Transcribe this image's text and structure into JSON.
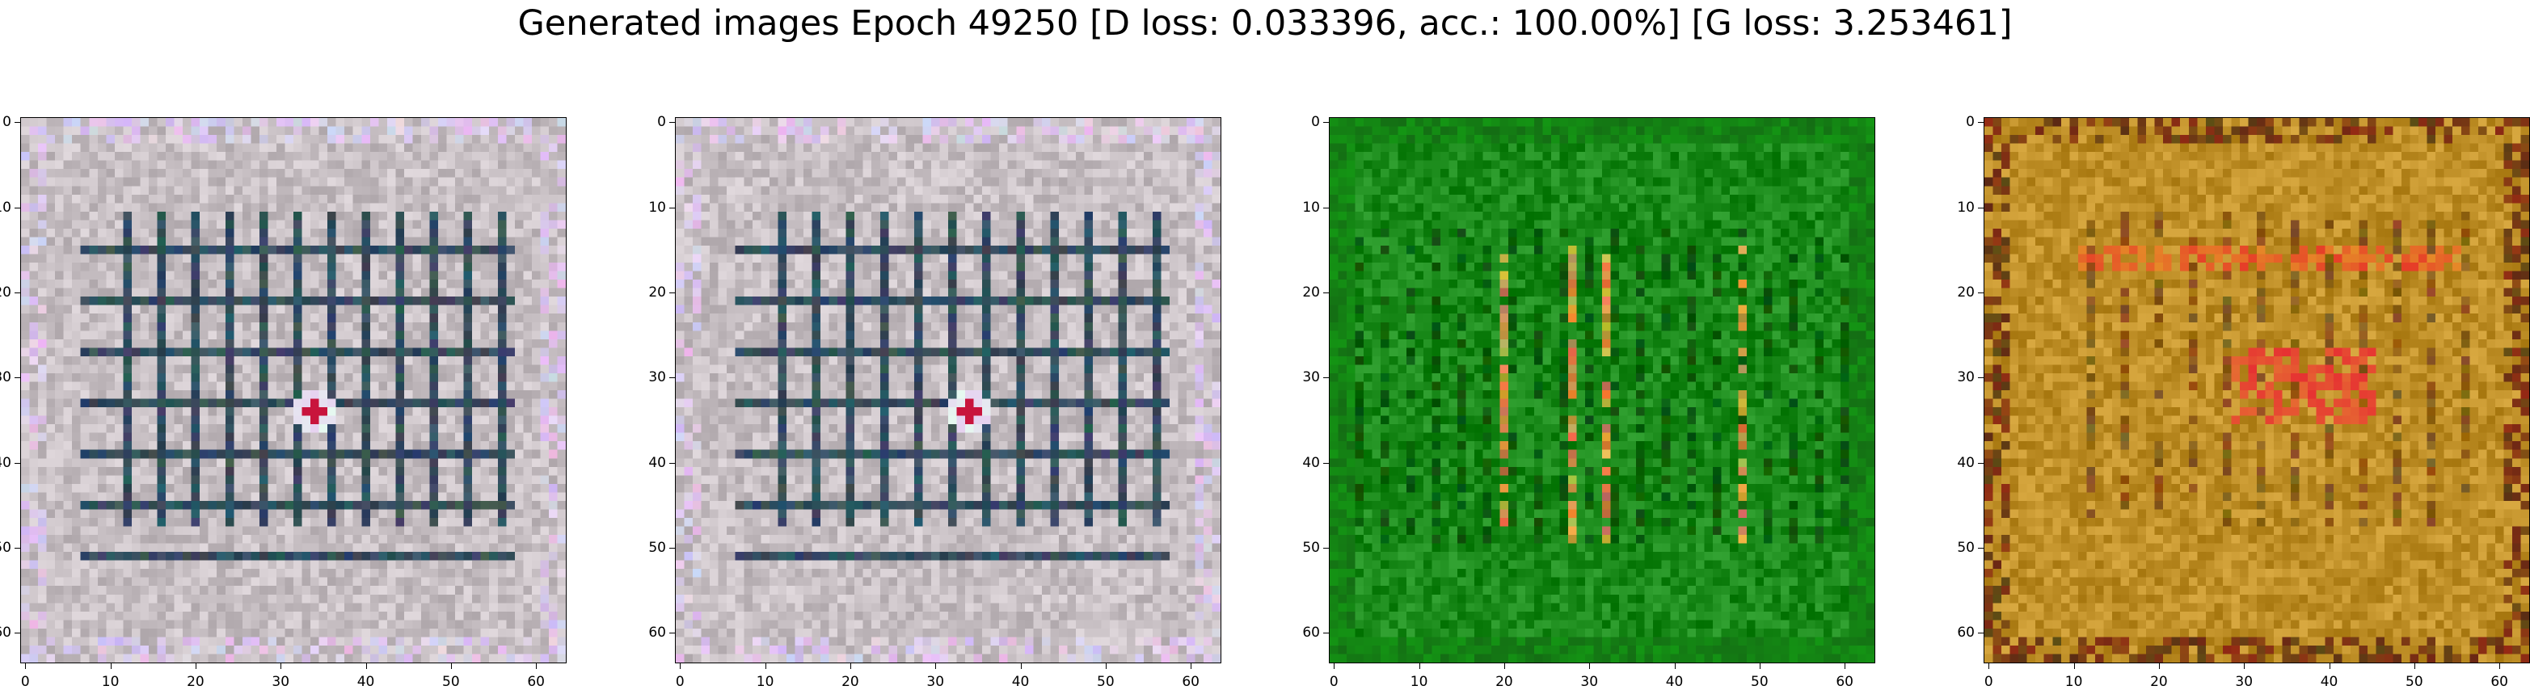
{
  "figure": {
    "title": "Generated images Epoch 49250 [D loss: 0.033396, acc.: 100.00%] [G loss: 3.253461]"
  },
  "axes": {
    "x_ticks": [
      "0",
      "10",
      "20",
      "30",
      "40",
      "50",
      "60"
    ],
    "y_ticks": [
      "0",
      "10",
      "20",
      "30",
      "40",
      "50",
      "60"
    ],
    "image_size": 64
  },
  "panels": [
    {
      "name": "generated-image-1",
      "palette": "gray-lavender",
      "base": "#c8c0c4",
      "accent": "#344e5e"
    },
    {
      "name": "generated-image-2",
      "palette": "gray-lavender",
      "base": "#c8c0c4",
      "accent": "#344e5e"
    },
    {
      "name": "generated-image-3",
      "palette": "green",
      "base": "#1a8a1a",
      "accent": "#0a5a0a"
    },
    {
      "name": "generated-image-4",
      "palette": "ochre",
      "base": "#c09028",
      "accent": "#8a5a18"
    }
  ]
}
